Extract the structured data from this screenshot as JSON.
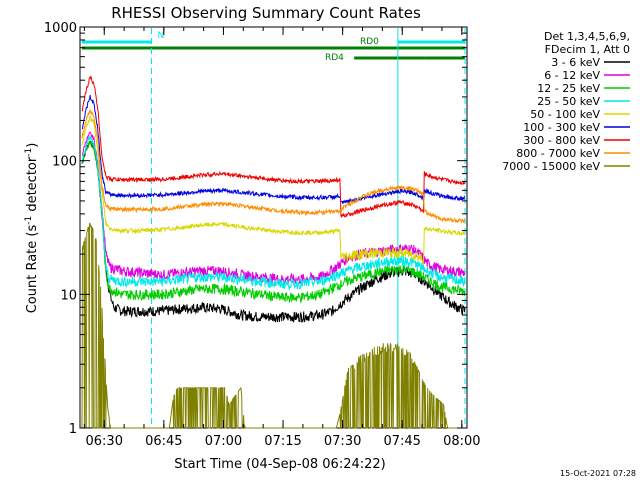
{
  "chart_data": {
    "type": "line",
    "title": "RHESSI Observing Summary Count Rates",
    "xlabel": "Start Time (04-Sep-08 06:24:22)",
    "ylabel_main": "Count Rate (s",
    "ylabel_sup1": "-1",
    "ylabel_mid": " detector",
    "ylabel_sup2": "-1",
    "ylabel_end": ")",
    "yscale": "log",
    "ylim": [
      1,
      1000
    ],
    "xlim_minutes": [
      6.4,
      7.2
    ],
    "x_unit": "minutes after 06:24:22",
    "x_ticks": [
      {
        "label": "06:30",
        "t": 5.6
      },
      {
        "label": "06:45",
        "t": 20.6
      },
      {
        "label": "07:00",
        "t": 35.6
      },
      {
        "label": "07:15",
        "t": 50.6
      },
      {
        "label": "07:30",
        "t": 65.6
      },
      {
        "label": "07:45",
        "t": 80.6
      },
      {
        "label": "08:00",
        "t": 95.6
      }
    ],
    "y_ticks": [
      {
        "label": "1",
        "v": 1
      },
      {
        "label": "10",
        "v": 10
      },
      {
        "label": "100",
        "v": 100
      },
      {
        "label": "1000",
        "v": 1000
      }
    ],
    "x_range_minutes": [
      0,
      96.4
    ],
    "legend_header": [
      "Det 1,3,4,5,6,9,",
      "FDecim 1, Att 0"
    ],
    "series": [
      {
        "name": "3 - 6 keV",
        "color": "#000000",
        "points": [
          [
            0,
            95
          ],
          [
            1,
            120
          ],
          [
            2,
            140
          ],
          [
            3,
            125
          ],
          [
            4,
            85
          ],
          [
            5,
            40
          ],
          [
            6,
            16
          ],
          [
            7,
            10
          ],
          [
            8,
            8
          ],
          [
            10,
            7.5
          ],
          [
            15,
            7.5
          ],
          [
            20,
            7.5
          ],
          [
            25,
            7.8
          ],
          [
            30,
            8
          ],
          [
            35,
            7.8
          ],
          [
            40,
            7
          ],
          [
            45,
            6.8
          ],
          [
            50,
            6.8
          ],
          [
            55,
            6.8
          ],
          [
            60,
            7
          ],
          [
            63,
            7.5
          ],
          [
            66,
            9
          ],
          [
            70,
            11
          ],
          [
            74,
            13
          ],
          [
            78,
            14.5
          ],
          [
            81,
            15
          ],
          [
            84,
            14
          ],
          [
            87,
            12
          ],
          [
            90,
            10
          ],
          [
            93,
            8.5
          ],
          [
            96.4,
            7.5
          ]
        ]
      },
      {
        "name": "6 - 12 keV",
        "color": "#e000e0",
        "points": [
          [
            0,
            110
          ],
          [
            1,
            140
          ],
          [
            2,
            160
          ],
          [
            3,
            145
          ],
          [
            4,
            95
          ],
          [
            5,
            45
          ],
          [
            6,
            20
          ],
          [
            7,
            16
          ],
          [
            10,
            15
          ],
          [
            15,
            14.5
          ],
          [
            20,
            14
          ],
          [
            25,
            14.5
          ],
          [
            30,
            15
          ],
          [
            35,
            15
          ],
          [
            40,
            14
          ],
          [
            45,
            13.5
          ],
          [
            50,
            13
          ],
          [
            55,
            13
          ],
          [
            60,
            13.5
          ],
          [
            64,
            16
          ],
          [
            67,
            19
          ],
          [
            70,
            20
          ],
          [
            75,
            21
          ],
          [
            80,
            22
          ],
          [
            83,
            22
          ],
          [
            85,
            20
          ],
          [
            87,
            17
          ],
          [
            90,
            15.5
          ],
          [
            93,
            15
          ],
          [
            96.4,
            14.5
          ]
        ]
      },
      {
        "name": "12 - 25 keV",
        "color": "#00cc00",
        "points": [
          [
            0,
            95
          ],
          [
            1,
            120
          ],
          [
            2,
            140
          ],
          [
            3,
            125
          ],
          [
            4,
            85
          ],
          [
            5,
            40
          ],
          [
            6,
            14
          ],
          [
            7,
            11
          ],
          [
            10,
            10
          ],
          [
            15,
            10
          ],
          [
            20,
            10
          ],
          [
            25,
            10.5
          ],
          [
            30,
            11
          ],
          [
            35,
            11
          ],
          [
            40,
            10.5
          ],
          [
            45,
            10
          ],
          [
            50,
            9.5
          ],
          [
            55,
            9.5
          ],
          [
            60,
            10
          ],
          [
            64,
            11.5
          ],
          [
            68,
            13
          ],
          [
            72,
            14
          ],
          [
            76,
            15
          ],
          [
            80,
            15.5
          ],
          [
            83,
            15
          ],
          [
            86,
            13.5
          ],
          [
            90,
            11.5
          ],
          [
            93,
            11
          ],
          [
            96.4,
            10.5
          ]
        ]
      },
      {
        "name": "25 - 50 keV",
        "color": "#00e8e8",
        "points": [
          [
            0,
            100
          ],
          [
            1,
            130
          ],
          [
            2,
            150
          ],
          [
            3,
            135
          ],
          [
            4,
            90
          ],
          [
            5,
            42
          ],
          [
            6,
            16
          ],
          [
            7,
            13
          ],
          [
            10,
            12.5
          ],
          [
            15,
            12.5
          ],
          [
            20,
            12.5
          ],
          [
            25,
            13
          ],
          [
            30,
            13.5
          ],
          [
            35,
            13.5
          ],
          [
            40,
            13
          ],
          [
            45,
            12.5
          ],
          [
            50,
            12
          ],
          [
            55,
            12
          ],
          [
            60,
            12.5
          ],
          [
            64,
            14
          ],
          [
            68,
            15.5
          ],
          [
            72,
            16.5
          ],
          [
            76,
            17.5
          ],
          [
            80,
            18
          ],
          [
            83,
            17.5
          ],
          [
            86,
            15.5
          ],
          [
            90,
            13.5
          ],
          [
            93,
            13
          ],
          [
            96.4,
            12.5
          ]
        ]
      },
      {
        "name": "50 - 100 keV",
        "color": "#d8d800",
        "points": [
          [
            0,
            130
          ],
          [
            1,
            175
          ],
          [
            2,
            210
          ],
          [
            3,
            190
          ],
          [
            4,
            120
          ],
          [
            5,
            60
          ],
          [
            6,
            34
          ],
          [
            7,
            31
          ],
          [
            10,
            30
          ],
          [
            15,
            30
          ],
          [
            20,
            30.5
          ],
          [
            25,
            31.5
          ],
          [
            30,
            33
          ],
          [
            35,
            33.5
          ],
          [
            40,
            32
          ],
          [
            45,
            30.5
          ],
          [
            50,
            29.5
          ],
          [
            55,
            29
          ],
          [
            60,
            29
          ],
          [
            63,
            29.5
          ],
          [
            65,
            30
          ],
          [
            65.1,
            19
          ],
          [
            70,
            20
          ],
          [
            75,
            20.5
          ],
          [
            80,
            20.5
          ],
          [
            83,
            20
          ],
          [
            85,
            19
          ],
          [
            86,
            18
          ],
          [
            86.1,
            31
          ],
          [
            90,
            30
          ],
          [
            93,
            29
          ],
          [
            96.4,
            28.5
          ]
        ]
      },
      {
        "name": "100 - 300 keV",
        "color": "#0000e0",
        "points": [
          [
            0,
            170
          ],
          [
            1,
            240
          ],
          [
            2,
            300
          ],
          [
            3,
            270
          ],
          [
            4,
            170
          ],
          [
            5,
            80
          ],
          [
            6,
            58
          ],
          [
            7,
            56
          ],
          [
            10,
            55
          ],
          [
            15,
            55
          ],
          [
            20,
            55.5
          ],
          [
            25,
            57
          ],
          [
            30,
            59
          ],
          [
            35,
            60
          ],
          [
            40,
            58
          ],
          [
            45,
            56
          ],
          [
            50,
            54
          ],
          [
            55,
            53
          ],
          [
            60,
            53
          ],
          [
            63,
            53.5
          ],
          [
            65,
            54
          ],
          [
            65.1,
            48
          ],
          [
            70,
            52
          ],
          [
            75,
            56
          ],
          [
            80,
            59
          ],
          [
            83,
            58
          ],
          [
            85,
            55
          ],
          [
            86,
            52
          ],
          [
            86.1,
            60
          ],
          [
            88,
            57
          ],
          [
            90,
            55
          ],
          [
            93,
            53
          ],
          [
            96.4,
            52
          ]
        ]
      },
      {
        "name": "300 - 800 keV",
        "color": "#ee0000",
        "points": [
          [
            0,
            230
          ],
          [
            1,
            330
          ],
          [
            2,
            420
          ],
          [
            3,
            380
          ],
          [
            4,
            240
          ],
          [
            5,
            110
          ],
          [
            6,
            76
          ],
          [
            7,
            73
          ],
          [
            10,
            72
          ],
          [
            15,
            72
          ],
          [
            20,
            72.5
          ],
          [
            25,
            75
          ],
          [
            30,
            78
          ],
          [
            35,
            80
          ],
          [
            40,
            77
          ],
          [
            45,
            74
          ],
          [
            50,
            71
          ],
          [
            55,
            70
          ],
          [
            60,
            70
          ],
          [
            63,
            71
          ],
          [
            65,
            72
          ],
          [
            65.1,
            38
          ],
          [
            70,
            42
          ],
          [
            75,
            46
          ],
          [
            80,
            49
          ],
          [
            83,
            47
          ],
          [
            85,
            44
          ],
          [
            86,
            41
          ],
          [
            86.1,
            80
          ],
          [
            88,
            76
          ],
          [
            90,
            73
          ],
          [
            93,
            70
          ],
          [
            96.4,
            68
          ]
        ]
      },
      {
        "name": "800 - 7000 keV",
        "color": "#ff8c00",
        "points": [
          [
            0,
            150
          ],
          [
            1,
            200
          ],
          [
            2,
            240
          ],
          [
            3,
            215
          ],
          [
            4,
            140
          ],
          [
            5,
            65
          ],
          [
            6,
            46
          ],
          [
            7,
            44
          ],
          [
            10,
            43
          ],
          [
            15,
            43
          ],
          [
            20,
            43.5
          ],
          [
            25,
            45
          ],
          [
            30,
            47
          ],
          [
            35,
            48
          ],
          [
            40,
            46
          ],
          [
            45,
            44
          ],
          [
            50,
            42
          ],
          [
            55,
            41
          ],
          [
            60,
            41
          ],
          [
            63,
            41.5
          ],
          [
            65,
            42
          ],
          [
            66,
            45
          ],
          [
            70,
            53
          ],
          [
            75,
            60
          ],
          [
            80,
            63
          ],
          [
            83,
            62
          ],
          [
            85,
            58
          ],
          [
            86,
            55
          ],
          [
            86.1,
            42
          ],
          [
            88,
            39
          ],
          [
            90,
            37
          ],
          [
            93,
            36
          ],
          [
            96.4,
            35
          ]
        ]
      },
      {
        "name": "7000 - 15000 keV",
        "color": "#808000",
        "points": [
          [
            0,
            20
          ],
          [
            1,
            28
          ],
          [
            2,
            34
          ],
          [
            3,
            30
          ],
          [
            4,
            20
          ],
          [
            5,
            8
          ],
          [
            5.8,
            3
          ],
          [
            6.5,
            1.4
          ],
          [
            7.2,
            1
          ],
          [
            22,
            1
          ],
          [
            23,
            1.7
          ],
          [
            24,
            2
          ],
          [
            36,
            2
          ],
          [
            37,
            1.5
          ],
          [
            40,
            2
          ],
          [
            41,
            1
          ],
          [
            64,
            1
          ],
          [
            65,
            1.3
          ],
          [
            67,
            2.8
          ],
          [
            70,
            3.2
          ],
          [
            73,
            3.7
          ],
          [
            76,
            4
          ],
          [
            79,
            4
          ],
          [
            82,
            3.6
          ],
          [
            84,
            3
          ],
          [
            86,
            2.2
          ],
          [
            88,
            1.8
          ],
          [
            91,
            1.5
          ],
          [
            92,
            1
          ],
          [
            96.4,
            1
          ]
        ]
      }
    ],
    "annotations": [
      {
        "label": "N",
        "color": "#00e8e8",
        "ranges": [
          [
            0,
            17.5
          ],
          [
            79.5,
            96.4
          ]
        ]
      },
      {
        "label": "RD0",
        "color": "#008000",
        "ranges": [
          [
            0,
            96.4
          ]
        ]
      },
      {
        "label": "RD4",
        "color": "#008000",
        "ranges": [
          [
            68.5,
            86.5
          ],
          [
            86.5,
            96.4
          ]
        ]
      }
    ],
    "vlines_minutes": [
      17.5,
      79.5,
      96.4
    ],
    "grid": false,
    "legend_position": "right"
  },
  "footer_date": "15-Oct-2021 07:28"
}
